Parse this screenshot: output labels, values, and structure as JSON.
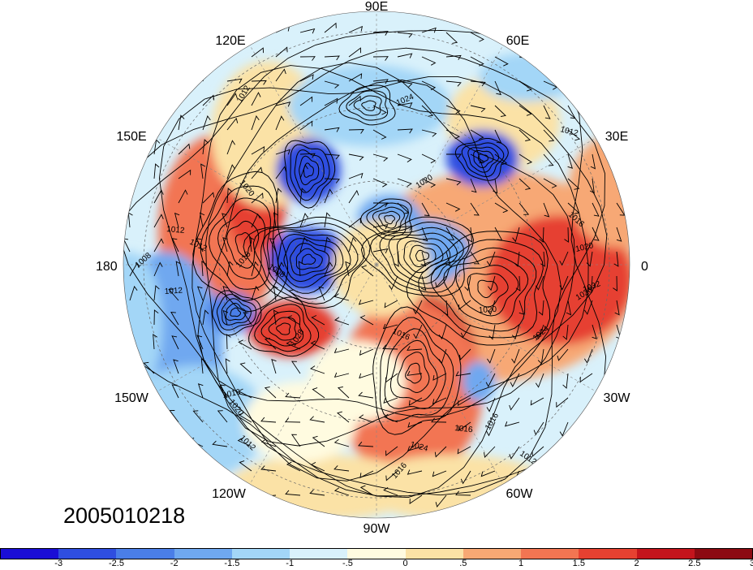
{
  "map": {
    "projection": "north polar stereographic",
    "shading": "diverging anomaly field",
    "contours": "sea level pressure isobars with wind barbs",
    "longitude_labels": [
      "90E",
      "60E",
      "30E",
      "0",
      "30W",
      "60W",
      "90W",
      "120W",
      "150W",
      "180",
      "150E",
      "120E"
    ],
    "contour_labels": [
      "1012",
      "1024",
      "1012",
      "1020",
      "1020",
      "1012",
      "1016",
      "1008",
      "1012",
      "1008",
      "1016",
      "1020",
      "1016",
      "1016",
      "1032",
      "1024",
      "1020",
      "1020",
      "1016",
      "1012",
      "1024",
      "1020",
      "1012",
      "1016",
      "1016",
      "1012",
      "1028"
    ],
    "timestamp": "2005010218"
  },
  "colorbar": {
    "colors": [
      "#1a0ed6",
      "#2f4ee0",
      "#4a7ee8",
      "#6fa8f0",
      "#a3d6f7",
      "#d9f1fb",
      "#fffbe0",
      "#fbe2a6",
      "#f7a874",
      "#f27552",
      "#e64131",
      "#c4141c",
      "#8c0a12"
    ],
    "tick_labels": [
      "-3",
      "-2.5",
      "-2",
      "-1.5",
      "-1",
      "-.5",
      "0",
      ".5",
      "1",
      "1.5",
      "2",
      "2.5",
      "3"
    ]
  }
}
